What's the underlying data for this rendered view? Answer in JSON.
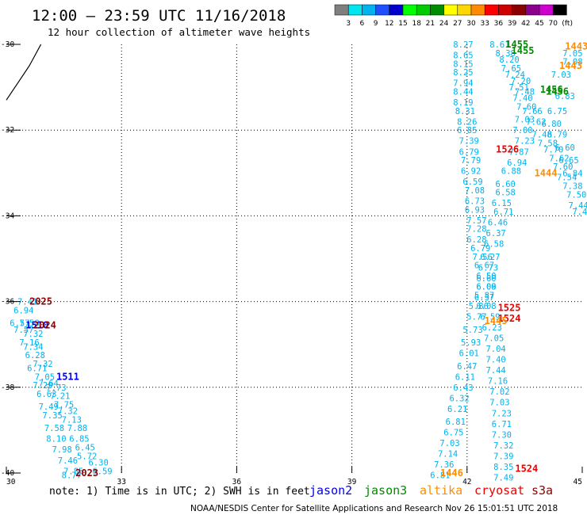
{
  "header": {
    "title": "12:00 – 23:59 UTC 11/16/2018",
    "subtitle": "12 hour collection of altimeter wave heights"
  },
  "colorbar": {
    "labels": [
      "3",
      "6",
      "9",
      "12",
      "15",
      "18",
      "21",
      "24",
      "27",
      "30",
      "33",
      "36",
      "39",
      "42",
      "45",
      "70"
    ],
    "unit": "(ft)",
    "colors": [
      "#7f7f7f",
      "#00e5ee",
      "#00b2ee",
      "#1e50ff",
      "#0000cd",
      "#00ff00",
      "#00cd00",
      "#008b00",
      "#ffff00",
      "#ffd700",
      "#ff8c00",
      "#ff0000",
      "#cd0000",
      "#8b0000",
      "#8b008b",
      "#cd00cd",
      "#000000"
    ]
  },
  "footer": {
    "note": "note:  1) Time is in UTC; 2) SWH is in feet",
    "credit": "NOAA/NESDIS Center for Satellite Applications and Research   Nov 26 15:01:51 UTC 2018"
  },
  "satellites": [
    {
      "name": "jason2",
      "color": "#0000ee"
    },
    {
      "name": "jason3",
      "color": "#008b00"
    },
    {
      "name": "altika",
      "color": "#ff8c00"
    },
    {
      "name": "cryosat",
      "color": "#ee0000"
    },
    {
      "name": "s3a",
      "color": "#8b0000"
    }
  ],
  "chart_data": {
    "type": "scatter",
    "title": "12:00 – 23:59 UTC 11/16/2018",
    "subtitle": "12 hour collection of altimeter wave heights",
    "xlim": [
      30,
      45
    ],
    "ylim": [
      -40,
      -30
    ],
    "xticks": [
      30,
      33,
      36,
      39,
      42,
      45
    ],
    "yticks": [
      -30,
      -32,
      -34,
      -36,
      -38,
      -40
    ],
    "grid": "dotted",
    "value_color": "#00b2ee",
    "coastline": [
      [
        30.0,
        -31.3
      ],
      [
        30.3,
        -30.9
      ],
      [
        30.6,
        -30.5
      ],
      [
        30.9,
        -30.0
      ]
    ],
    "series": [
      {
        "name": "track A",
        "points": [
          {
            "lon": 30.55,
            "lat": -36.0,
            "v": "7.41"
          },
          {
            "lon": 30.45,
            "lat": -36.2,
            "v": "6.94"
          },
          {
            "lon": 30.35,
            "lat": -36.5,
            "v": "6.57"
          },
          {
            "lon": 30.6,
            "lat": -36.5,
            "v": "7.58"
          },
          {
            "lon": 30.45,
            "lat": -36.65,
            "v": "7.57"
          },
          {
            "lon": 30.7,
            "lat": -36.75,
            "v": "7.32"
          },
          {
            "lon": 30.6,
            "lat": -36.95,
            "v": "7.16"
          },
          {
            "lon": 30.7,
            "lat": -37.05,
            "v": "7.34"
          },
          {
            "lon": 30.75,
            "lat": -37.25,
            "v": "6.28"
          },
          {
            "lon": 30.95,
            "lat": -37.45,
            "v": "7.32"
          },
          {
            "lon": 30.8,
            "lat": -37.55,
            "v": "6.71"
          },
          {
            "lon": 31.0,
            "lat": -37.75,
            "v": "7.05"
          },
          {
            "lon": 31.1,
            "lat": -37.9,
            "v": "7.64"
          },
          {
            "lon": 31.3,
            "lat": -38.0,
            "v": "7.73"
          },
          {
            "lon": 30.95,
            "lat": -37.95,
            "v": "7.29"
          },
          {
            "lon": 31.4,
            "lat": -38.2,
            "v": "7.21"
          },
          {
            "lon": 31.05,
            "lat": -38.15,
            "v": "6.63"
          },
          {
            "lon": 31.5,
            "lat": -38.4,
            "v": "7.75"
          },
          {
            "lon": 31.1,
            "lat": -38.45,
            "v": "7.49"
          },
          {
            "lon": 31.6,
            "lat": -38.55,
            "v": "7.32"
          },
          {
            "lon": 31.2,
            "lat": -38.65,
            "v": "7.35"
          },
          {
            "lon": 31.7,
            "lat": -38.75,
            "v": "7.13"
          },
          {
            "lon": 31.25,
            "lat": -38.95,
            "v": "7.58"
          },
          {
            "lon": 31.85,
            "lat": -38.95,
            "v": "7.88"
          },
          {
            "lon": 31.3,
            "lat": -39.2,
            "v": "8.10"
          },
          {
            "lon": 31.9,
            "lat": -39.2,
            "v": "6.85"
          },
          {
            "lon": 31.45,
            "lat": -39.45,
            "v": "7.98"
          },
          {
            "lon": 32.05,
            "lat": -39.4,
            "v": "6.45"
          },
          {
            "lon": 31.6,
            "lat": -39.7,
            "v": "7.46"
          },
          {
            "lon": 32.1,
            "lat": -39.6,
            "v": "5.72"
          },
          {
            "lon": 32.4,
            "lat": -39.75,
            "v": "6.30"
          },
          {
            "lon": 31.75,
            "lat": -39.95,
            "v": "7.85"
          },
          {
            "lon": 32.5,
            "lat": -39.95,
            "v": "6.59"
          },
          {
            "lon": 31.7,
            "lat": -40.05,
            "v": "8.77"
          }
        ]
      },
      {
        "name": "track B",
        "points": [
          {
            "lon": 41.9,
            "lat": -30.0,
            "v": "8.27"
          },
          {
            "lon": 41.9,
            "lat": -30.25,
            "v": "8.65"
          },
          {
            "lon": 41.9,
            "lat": -30.45,
            "v": "8.15"
          },
          {
            "lon": 41.9,
            "lat": -30.65,
            "v": "8.25"
          },
          {
            "lon": 41.9,
            "lat": -30.9,
            "v": "7.94"
          },
          {
            "lon": 41.9,
            "lat": -31.1,
            "v": "8.44"
          },
          {
            "lon": 41.9,
            "lat": -31.35,
            "v": "8.19"
          },
          {
            "lon": 41.95,
            "lat": -31.55,
            "v": "8.31"
          },
          {
            "lon": 42.0,
            "lat": -31.8,
            "v": "8.26"
          },
          {
            "lon": 42.0,
            "lat": -32.0,
            "v": "6.85"
          },
          {
            "lon": 42.05,
            "lat": -32.25,
            "v": "7.39"
          },
          {
            "lon": 42.05,
            "lat": -32.5,
            "v": "6.79"
          },
          {
            "lon": 42.1,
            "lat": -32.7,
            "v": "7.79"
          },
          {
            "lon": 42.1,
            "lat": -32.95,
            "v": "6.92"
          },
          {
            "lon": 42.15,
            "lat": -33.2,
            "v": "6.59"
          },
          {
            "lon": 42.2,
            "lat": -33.4,
            "v": "7.08"
          },
          {
            "lon": 42.2,
            "lat": -33.65,
            "v": "6.73"
          },
          {
            "lon": 42.2,
            "lat": -33.85,
            "v": "6.93"
          },
          {
            "lon": 42.25,
            "lat": -34.1,
            "v": "7.57"
          },
          {
            "lon": 42.25,
            "lat": -34.3,
            "v": "7.28"
          },
          {
            "lon": 42.25,
            "lat": -34.55,
            "v": "6.28"
          },
          {
            "lon": 42.35,
            "lat": -34.75,
            "v": "6.79"
          },
          {
            "lon": 42.4,
            "lat": -34.95,
            "v": "7.56"
          },
          {
            "lon": 42.45,
            "lat": -35.15,
            "v": "6.67"
          },
          {
            "lon": 42.5,
            "lat": -35.4,
            "v": "6.50"
          },
          {
            "lon": 42.5,
            "lat": -35.65,
            "v": "6.09"
          },
          {
            "lon": 42.45,
            "lat": -35.85,
            "v": "5.87"
          },
          {
            "lon": 42.3,
            "lat": -36.1,
            "v": "5.86"
          },
          {
            "lon": 42.25,
            "lat": -36.35,
            "v": "5.77"
          },
          {
            "lon": 42.15,
            "lat": -36.65,
            "v": "5.73"
          },
          {
            "lon": 42.1,
            "lat": -36.95,
            "v": "5.93"
          },
          {
            "lon": 42.05,
            "lat": -37.2,
            "v": "6.01"
          },
          {
            "lon": 42.0,
            "lat": -37.5,
            "v": "6.47"
          },
          {
            "lon": 41.95,
            "lat": -37.75,
            "v": "6.11"
          },
          {
            "lon": 41.9,
            "lat": -38.0,
            "v": "6.43"
          },
          {
            "lon": 41.8,
            "lat": -38.25,
            "v": "6.32"
          },
          {
            "lon": 41.75,
            "lat": -38.5,
            "v": "6.21"
          },
          {
            "lon": 41.7,
            "lat": -38.8,
            "v": "6.81"
          },
          {
            "lon": 41.65,
            "lat": -39.05,
            "v": "6.75"
          },
          {
            "lon": 41.55,
            "lat": -39.3,
            "v": "7.03"
          },
          {
            "lon": 41.5,
            "lat": -39.55,
            "v": "7.14"
          },
          {
            "lon": 41.4,
            "lat": -39.8,
            "v": "7.36"
          },
          {
            "lon": 41.3,
            "lat": -40.05,
            "v": "6.81"
          }
        ]
      },
      {
        "name": "track C",
        "points": [
          {
            "lon": 43.0,
            "lat": -33.25,
            "v": "6.60"
          },
          {
            "lon": 43.0,
            "lat": -33.45,
            "v": "6.58"
          },
          {
            "lon": 42.9,
            "lat": -33.7,
            "v": "6.15"
          },
          {
            "lon": 42.95,
            "lat": -33.9,
            "v": "6.71"
          },
          {
            "lon": 42.8,
            "lat": -34.15,
            "v": "6.46"
          },
          {
            "lon": 42.75,
            "lat": -34.4,
            "v": "6.37"
          },
          {
            "lon": 42.7,
            "lat": -34.65,
            "v": "6.58"
          },
          {
            "lon": 42.6,
            "lat": -34.95,
            "v": "6.27"
          },
          {
            "lon": 42.55,
            "lat": -35.2,
            "v": "6.73"
          },
          {
            "lon": 42.5,
            "lat": -35.45,
            "v": "6.60"
          },
          {
            "lon": 42.5,
            "lat": -35.65,
            "v": "6.08"
          },
          {
            "lon": 42.45,
            "lat": -35.9,
            "v": "6.37"
          },
          {
            "lon": 42.5,
            "lat": -36.1,
            "v": "6.08"
          },
          {
            "lon": 42.6,
            "lat": -36.35,
            "v": "6.59"
          },
          {
            "lon": 42.65,
            "lat": -36.6,
            "v": "6.23"
          },
          {
            "lon": 42.7,
            "lat": -36.85,
            "v": "7.05"
          },
          {
            "lon": 42.75,
            "lat": -37.1,
            "v": "7.04"
          },
          {
            "lon": 42.75,
            "lat": -37.35,
            "v": "7.40"
          },
          {
            "lon": 42.75,
            "lat": -37.6,
            "v": "7.44"
          },
          {
            "lon": 42.8,
            "lat": -37.85,
            "v": "7.16"
          },
          {
            "lon": 42.85,
            "lat": -38.1,
            "v": "7.02"
          },
          {
            "lon": 42.85,
            "lat": -38.35,
            "v": "7.03"
          },
          {
            "lon": 42.9,
            "lat": -38.6,
            "v": "7.23"
          },
          {
            "lon": 42.9,
            "lat": -38.85,
            "v": "6.71"
          },
          {
            "lon": 42.9,
            "lat": -39.1,
            "v": "7.30"
          },
          {
            "lon": 42.95,
            "lat": -39.35,
            "v": "7.32"
          },
          {
            "lon": 42.95,
            "lat": -39.6,
            "v": "7.39"
          },
          {
            "lon": 42.95,
            "lat": -39.85,
            "v": "8.35"
          },
          {
            "lon": 42.95,
            "lat": -40.1,
            "v": "7.49"
          }
        ]
      },
      {
        "name": "track D",
        "points": [
          {
            "lon": 42.85,
            "lat": -30.0,
            "v": "8.61"
          },
          {
            "lon": 43.0,
            "lat": -30.2,
            "v": "8.38"
          },
          {
            "lon": 43.1,
            "lat": -30.35,
            "v": "8.20"
          },
          {
            "lon": 43.15,
            "lat": -30.55,
            "v": "7.65"
          },
          {
            "lon": 43.25,
            "lat": -30.7,
            "v": "7.24"
          },
          {
            "lon": 43.4,
            "lat": -30.85,
            "v": "7.20"
          },
          {
            "lon": 43.35,
            "lat": -31.0,
            "v": "7.51"
          },
          {
            "lon": 43.5,
            "lat": -31.1,
            "v": "7.48"
          },
          {
            "lon": 43.45,
            "lat": -31.25,
            "v": "7.40"
          },
          {
            "lon": 43.55,
            "lat": -31.45,
            "v": "7.60"
          },
          {
            "lon": 43.7,
            "lat": -31.55,
            "v": "7.66"
          },
          {
            "lon": 43.5,
            "lat": -31.75,
            "v": "7.03"
          },
          {
            "lon": 43.8,
            "lat": -31.8,
            "v": "7.62"
          },
          {
            "lon": 43.45,
            "lat": -32.0,
            "v": "7.00"
          },
          {
            "lon": 43.95,
            "lat": -32.1,
            "v": "7.48"
          },
          {
            "lon": 43.5,
            "lat": -32.25,
            "v": "7.23"
          },
          {
            "lon": 44.1,
            "lat": -32.3,
            "v": "7.58"
          },
          {
            "lon": 43.35,
            "lat": -32.5,
            "v": "7.87"
          },
          {
            "lon": 44.25,
            "lat": -32.45,
            "v": "7.70"
          },
          {
            "lon": 43.3,
            "lat": -32.75,
            "v": "6.94"
          },
          {
            "lon": 44.4,
            "lat": -32.65,
            "v": "7.62"
          },
          {
            "lon": 43.15,
            "lat": -32.95,
            "v": "6.88"
          },
          {
            "lon": 44.5,
            "lat": -32.85,
            "v": "7.60"
          },
          {
            "lon": 44.6,
            "lat": -33.1,
            "v": "7.54"
          },
          {
            "lon": 44.75,
            "lat": -33.3,
            "v": "7.38"
          },
          {
            "lon": 44.85,
            "lat": -33.5,
            "v": "7.50"
          },
          {
            "lon": 44.9,
            "lat": -33.75,
            "v": "7.44"
          },
          {
            "lon": 45.0,
            "lat": -33.9,
            "v": "7.46"
          }
        ]
      },
      {
        "name": "track E",
        "points": [
          {
            "lon": 44.75,
            "lat": -30.2,
            "v": "7.05"
          },
          {
            "lon": 44.75,
            "lat": -30.4,
            "v": "7.08"
          },
          {
            "lon": 44.45,
            "lat": -30.7,
            "v": "7.03"
          },
          {
            "lon": 44.55,
            "lat": -31.2,
            "v": "6.83"
          },
          {
            "lon": 44.35,
            "lat": -31.55,
            "v": "6.75"
          },
          {
            "lon": 44.2,
            "lat": -31.85,
            "v": "6.80"
          },
          {
            "lon": 44.35,
            "lat": -32.1,
            "v": "6.79"
          },
          {
            "lon": 44.55,
            "lat": -32.4,
            "v": "6.60"
          },
          {
            "lon": 44.65,
            "lat": -32.7,
            "v": "6.65"
          },
          {
            "lon": 44.75,
            "lat": -33.0,
            "v": "6.84"
          }
        ]
      }
    ],
    "time_labels": [
      {
        "lon": 30.9,
        "lat": -36.0,
        "text": "2025",
        "sat": "s3a"
      },
      {
        "lon": 30.8,
        "lat": -36.55,
        "text": "1510",
        "sat": "jason2"
      },
      {
        "lon": 31.0,
        "lat": -36.55,
        "text": "2024",
        "sat": "s3a"
      },
      {
        "lon": 31.6,
        "lat": -37.75,
        "text": "1511",
        "sat": "jason2"
      },
      {
        "lon": 32.1,
        "lat": -40.0,
        "text": "2023",
        "sat": "s3a"
      },
      {
        "lon": 43.05,
        "lat": -32.45,
        "text": "1526",
        "sat": "cryosat"
      },
      {
        "lon": 43.3,
        "lat": -30.0,
        "text": "1455",
        "sat": "jason3"
      },
      {
        "lon": 43.45,
        "lat": -30.15,
        "text": "1455",
        "sat": "jason3"
      },
      {
        "lon": 44.85,
        "lat": -30.05,
        "text": "1443",
        "sat": "altika"
      },
      {
        "lon": 44.7,
        "lat": -30.5,
        "text": "1443",
        "sat": "altika"
      },
      {
        "lon": 44.2,
        "lat": -31.05,
        "text": "1456",
        "sat": "jason3"
      },
      {
        "lon": 44.35,
        "lat": -31.1,
        "text": "1456",
        "sat": "jason3"
      },
      {
        "lon": 44.05,
        "lat": -33.0,
        "text": "1444",
        "sat": "altika"
      },
      {
        "lon": 43.1,
        "lat": -36.15,
        "text": "1525",
        "sat": "cryosat"
      },
      {
        "lon": 43.1,
        "lat": -36.4,
        "text": "1524",
        "sat": "cryosat"
      },
      {
        "lon": 42.75,
        "lat": -36.45,
        "text": "1445",
        "sat": "altika"
      },
      {
        "lon": 41.6,
        "lat": -40.0,
        "text": "1446",
        "sat": "altika"
      },
      {
        "lon": 43.55,
        "lat": -39.9,
        "text": "1524",
        "sat": "cryosat"
      }
    ]
  }
}
